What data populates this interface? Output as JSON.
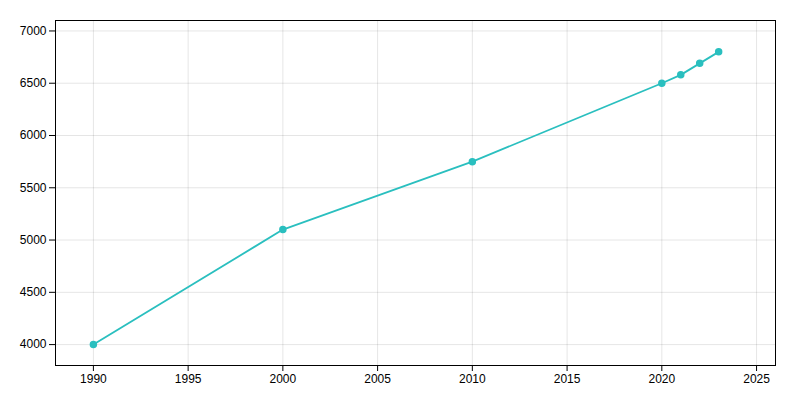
{
  "chart_data": {
    "type": "line",
    "x": [
      1990,
      2000,
      2010,
      2020,
      2021,
      2022,
      2023
    ],
    "values": [
      4000,
      5100,
      5750,
      6500,
      6580,
      6690,
      6800
    ],
    "color": "#2abfbf",
    "marker": "circle",
    "xlim": [
      1988,
      2026
    ],
    "ylim": [
      3800,
      7100
    ],
    "xticks": [
      1990,
      1995,
      2000,
      2005,
      2010,
      2015,
      2020,
      2025
    ],
    "yticks": [
      4000,
      4500,
      5000,
      5500,
      6000,
      6500,
      7000
    ],
    "grid": true
  }
}
